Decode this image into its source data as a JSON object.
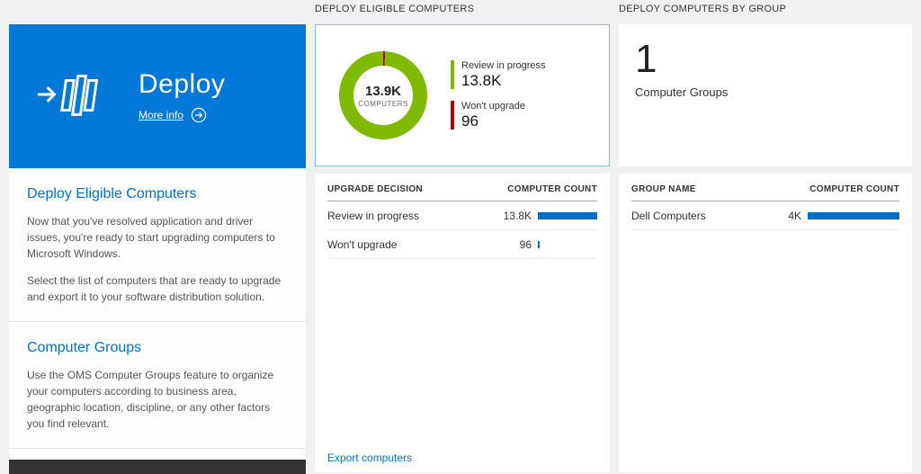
{
  "colors": {
    "tile": "#0078d7",
    "green": "#7fba00",
    "red": "#a80000",
    "bar": "#0072c6",
    "link": "#0072c6"
  },
  "left": {
    "tile": {
      "title": "Deploy",
      "more_info_label": "More info"
    },
    "section1": {
      "heading": "Deploy Eligible Computers",
      "para1": "Now that you've resolved application and driver issues, you're ready to start upgrading computers to Microsoft Windows.",
      "para2": "Select the list of computers that are ready to upgrade and export it to your software distribution solution."
    },
    "section2": {
      "heading": "Computer Groups",
      "para1": "Use the OMS Computer Groups feature to organize your computers according to business area, geographic location, discipline, or any other factors you find relevant."
    }
  },
  "middle": {
    "header": "DEPLOY ELIGIBLE COMPUTERS",
    "donut": {
      "center_value": "13.9K",
      "center_label": "COMPUTERS",
      "legend": [
        {
          "label": "Review in progress",
          "value": "13.8K"
        },
        {
          "label": "Won't upgrade",
          "value": "96"
        }
      ]
    },
    "table": {
      "col1": "UPGRADE DECISION",
      "col2": "COMPUTER COUNT",
      "rows": [
        {
          "label": "Review in progress",
          "value": "13.8K",
          "bar": "100%"
        },
        {
          "label": "Won't upgrade",
          "value": "96",
          "bar": "3%"
        }
      ]
    },
    "export_link": "Export computers"
  },
  "right": {
    "header": "DEPLOY COMPUTERS BY GROUP",
    "summary": {
      "value": "1",
      "label": "Computer Groups"
    },
    "table": {
      "col1": "GROUP NAME",
      "col2": "COMPUTER COUNT",
      "rows": [
        {
          "label": "Dell Computers",
          "value": "4K",
          "bar": "100%"
        }
      ]
    }
  },
  "chart_data": {
    "type": "pie",
    "title": "Deploy Eligible Computers",
    "center_label": "13.9K COMPUTERS",
    "slices": [
      {
        "label": "Review in progress",
        "value": 13800,
        "display": "13.8K",
        "color": "#7fba00"
      },
      {
        "label": "Won't upgrade",
        "value": 96,
        "display": "96",
        "color": "#a80000"
      }
    ],
    "legend_position": "right"
  }
}
